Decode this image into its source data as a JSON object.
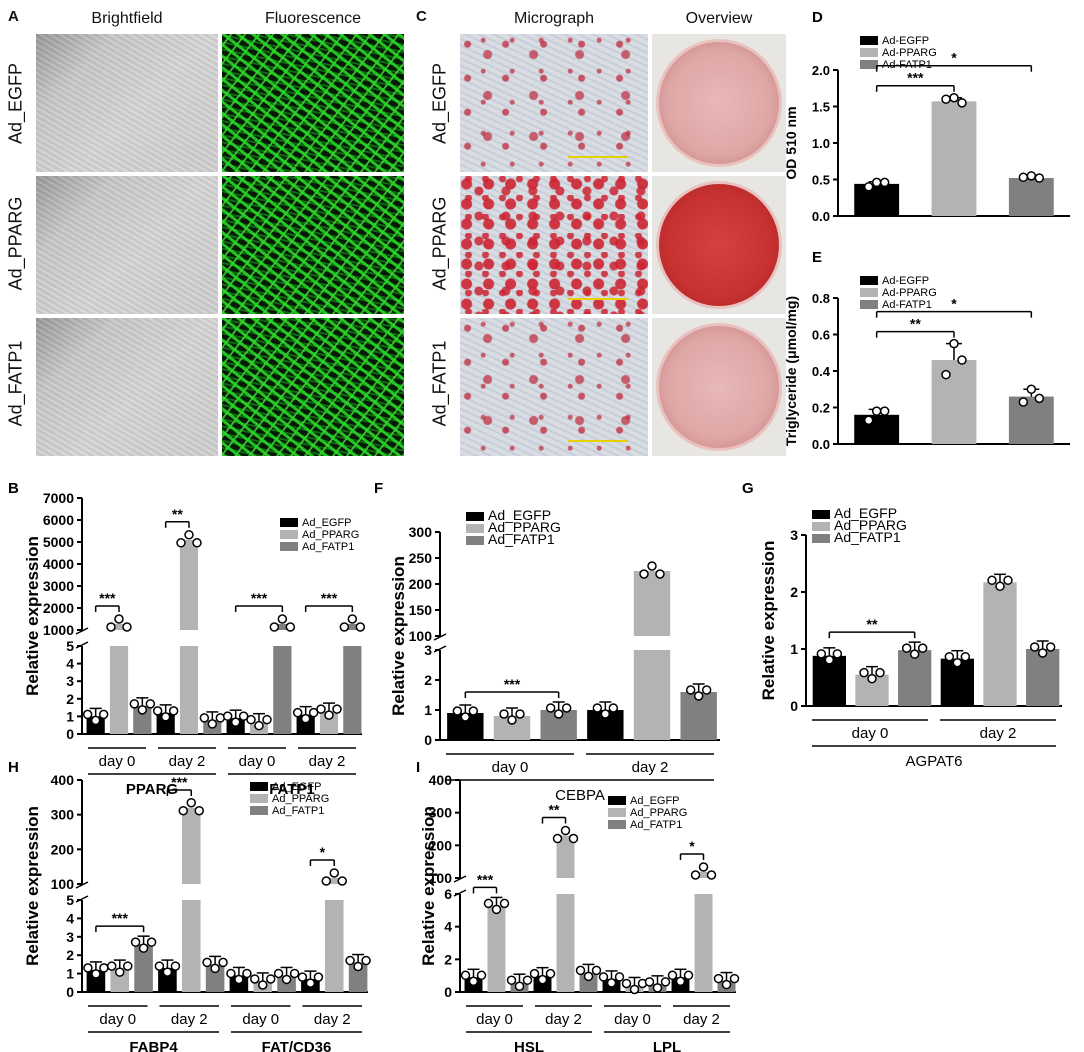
{
  "panel_a": {
    "letter": "A",
    "col_titles": [
      "Brightfield",
      "Fluorescence"
    ],
    "row_labels": [
      "Ad_EGFP",
      "Ad_PPARG",
      "Ad_FATP1"
    ]
  },
  "panel_c": {
    "letter": "C",
    "col_titles": [
      "Micrograph",
      "Overview"
    ],
    "row_labels": [
      "Ad_EGFP",
      "Ad_PPARG",
      "Ad_FATP1"
    ]
  },
  "colors": {
    "egfp": "#000000",
    "pparg": "#b3b3b3",
    "fatp1": "#808080"
  },
  "chart_data": [
    {
      "panel": "D",
      "type": "bar",
      "legend": [
        "Ad-EGFP",
        "Ad-PPARG",
        "Ad-FATP1"
      ],
      "ylabel": "OD 510 nm",
      "ylim": [
        0,
        2.0
      ],
      "yticks": [
        "0.0",
        "0.5",
        "1.0",
        "1.5",
        "2.0"
      ],
      "values": [
        0.44,
        1.57,
        0.52
      ],
      "errors": [
        0.03,
        0.05,
        0.03
      ],
      "points": [
        [
          0.4,
          0.46,
          0.46
        ],
        [
          1.6,
          1.62,
          1.55
        ],
        [
          0.53,
          0.55,
          0.52
        ]
      ],
      "sig": [
        {
          "from": 0,
          "to": 1,
          "label": "***"
        },
        {
          "from": 0,
          "to": 2,
          "label": "*"
        }
      ]
    },
    {
      "panel": "E",
      "type": "bar",
      "legend": [
        "Ad-EGFP",
        "Ad-PPARG",
        "Ad-FATP1"
      ],
      "ylabel": "Triglyceride (μmol/mg)",
      "ylim": [
        0,
        0.8
      ],
      "yticks": [
        "0.0",
        "0.2",
        "0.4",
        "0.6",
        "0.8"
      ],
      "values": [
        0.16,
        0.46,
        0.26
      ],
      "errors": [
        0.03,
        0.09,
        0.04
      ],
      "points": [
        [
          0.13,
          0.18,
          0.18
        ],
        [
          0.38,
          0.55,
          0.46
        ],
        [
          0.23,
          0.3,
          0.25
        ]
      ],
      "sig": [
        {
          "from": 0,
          "to": 1,
          "label": "**"
        },
        {
          "from": 0,
          "to": 2,
          "label": "*"
        }
      ]
    },
    {
      "panel": "B",
      "type": "bar",
      "legend": [
        "Ad_EGFP",
        "Ad_PPARG",
        "Ad_FATP1"
      ],
      "ylabel": "Relative expression",
      "lower_ticks": [
        "0",
        "1",
        "2",
        "3",
        "4",
        "5"
      ],
      "upper_ticks": [
        "1000",
        "2000",
        "3000",
        "4000",
        "5000",
        "6000",
        "7000"
      ],
      "groups": [
        {
          "label": "day 0",
          "values": [
            1.0,
            650,
            1.6
          ]
        },
        {
          "label": "day 2",
          "values": [
            1.2,
            5100,
            0.8
          ]
        },
        {
          "label": "day 0",
          "values": [
            0.9,
            0.7,
            700
          ]
        },
        {
          "label": "day 2",
          "values": [
            1.1,
            1.3,
            700
          ]
        }
      ],
      "genes": [
        "PPARG",
        "FATP1"
      ],
      "sig": [
        "***",
        "**",
        "***",
        "***",
        "**"
      ]
    },
    {
      "panel": "F",
      "type": "bar",
      "legend": [
        "Ad_EGFP",
        "Ad_PPARG",
        "Ad_FATP1"
      ],
      "ylabel": "Relative expression",
      "lower_ticks": [
        "0",
        "1",
        "2",
        "3"
      ],
      "upper_ticks": [
        "100",
        "150",
        "200",
        "250",
        "300"
      ],
      "groups": [
        {
          "label": "day 0",
          "values": [
            0.9,
            0.8,
            1.0
          ]
        },
        {
          "label": "day 2",
          "values": [
            1.0,
            225,
            1.6
          ]
        }
      ],
      "genes": [
        "CEBPA"
      ],
      "sig": [
        "***"
      ]
    },
    {
      "panel": "G",
      "type": "bar",
      "legend": [
        "Ad_EGFP",
        "Ad_PPARG",
        "Ad_FATP1"
      ],
      "ylabel": "Relative expression",
      "ylim": [
        0,
        3
      ],
      "yticks": [
        "0",
        "1",
        "2",
        "3"
      ],
      "groups": [
        {
          "label": "day 0",
          "values": [
            0.88,
            0.55,
            0.98
          ]
        },
        {
          "label": "day 2",
          "values": [
            0.83,
            2.17,
            1.0
          ]
        }
      ],
      "genes": [
        "AGPAT6"
      ],
      "sig": [
        "**"
      ]
    },
    {
      "panel": "H",
      "type": "bar",
      "legend": [
        "Ad_EGFP",
        "Ad_PPARG",
        "Ad_FATP1"
      ],
      "ylabel": "Relative expression",
      "lower_ticks": [
        "0",
        "1",
        "2",
        "3",
        "4",
        "5"
      ],
      "upper_ticks": [
        "100",
        "200",
        "300",
        "400"
      ],
      "groups": [
        {
          "label": "day 0",
          "values": [
            1.2,
            1.3,
            2.6
          ]
        },
        {
          "label": "day 2",
          "values": [
            1.3,
            320,
            1.5
          ]
        },
        {
          "label": "day 0",
          "values": [
            0.9,
            0.6,
            0.9
          ]
        },
        {
          "label": "day 2",
          "values": [
            0.7,
            85,
            1.6
          ]
        }
      ],
      "genes": [
        "FABP4",
        "FAT/CD36"
      ],
      "sig": [
        "***",
        "***",
        "*"
      ]
    },
    {
      "panel": "I",
      "type": "bar",
      "legend": [
        "Ad_EGFP",
        "Ad_PPARG",
        "Ad_FATP1"
      ],
      "ylabel": "Relative expression",
      "lower_ticks": [
        "0",
        "2",
        "4",
        "6"
      ],
      "upper_ticks": [
        "100",
        "200",
        "300",
        "400"
      ],
      "groups": [
        {
          "label": "day 0",
          "values": [
            0.9,
            5.3,
            0.6
          ]
        },
        {
          "label": "day 2",
          "values": [
            1.0,
            230,
            1.2
          ]
        },
        {
          "label": "day 0",
          "values": [
            0.8,
            0.4,
            0.5
          ]
        },
        {
          "label": "day 2",
          "values": [
            0.9,
            45,
            0.7
          ]
        }
      ],
      "genes": [
        "HSL",
        "LPL"
      ],
      "sig": [
        "***",
        "**",
        "*"
      ]
    }
  ]
}
